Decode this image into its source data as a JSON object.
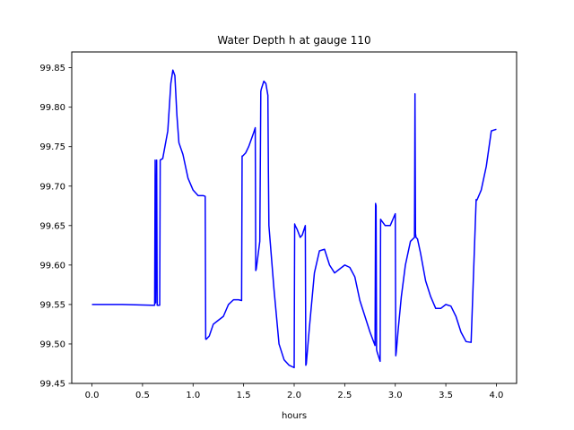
{
  "chart_data": {
    "type": "line",
    "title": "Water Depth h at gauge 110",
    "xlabel": "hours",
    "ylabel": "",
    "xlim": [
      -0.2,
      4.2
    ],
    "ylim": [
      99.45,
      99.87
    ],
    "x_ticks": [
      0.0,
      0.5,
      1.0,
      1.5,
      2.0,
      2.5,
      3.0,
      3.5,
      4.0
    ],
    "x_tick_labels": [
      "0.0",
      "0.5",
      "1.0",
      "1.5",
      "2.0",
      "2.5",
      "3.0",
      "3.5",
      "4.0"
    ],
    "y_ticks": [
      99.45,
      99.5,
      99.55,
      99.6,
      99.65,
      99.7,
      99.75,
      99.8,
      99.85
    ],
    "y_tick_labels": [
      "99.45",
      "99.50",
      "99.55",
      "99.60",
      "99.65",
      "99.70",
      "99.75",
      "99.80",
      "99.85"
    ],
    "grid": false,
    "series": [
      {
        "color": "#0000ff",
        "x": [
          0.0,
          0.3,
          0.6,
          0.62,
          0.625,
          0.63,
          0.64,
          0.645,
          0.66,
          0.67,
          0.675,
          0.7,
          0.75,
          0.78,
          0.8,
          0.82,
          0.84,
          0.86,
          0.9,
          0.95,
          1.0,
          1.05,
          1.1,
          1.12,
          1.125,
          1.13,
          1.16,
          1.2,
          1.25,
          1.3,
          1.35,
          1.4,
          1.45,
          1.48,
          1.485,
          1.49,
          1.52,
          1.55,
          1.6,
          1.615,
          1.62,
          1.625,
          1.66,
          1.67,
          1.675,
          1.7,
          1.72,
          1.74,
          1.745,
          1.75,
          1.8,
          1.85,
          1.9,
          1.95,
          2.0,
          2.005,
          2.01,
          2.03,
          2.06,
          2.08,
          2.11,
          2.115,
          2.12,
          2.15,
          2.2,
          2.25,
          2.3,
          2.35,
          2.4,
          2.45,
          2.5,
          2.55,
          2.6,
          2.65,
          2.7,
          2.75,
          2.8,
          2.805,
          2.81,
          2.815,
          2.82,
          2.85,
          2.855,
          2.86,
          2.9,
          2.95,
          3.0,
          3.005,
          3.01,
          3.03,
          3.06,
          3.1,
          3.15,
          3.19,
          3.195,
          3.2,
          3.205,
          3.22,
          3.25,
          3.3,
          3.35,
          3.4,
          3.45,
          3.5,
          3.55,
          3.6,
          3.65,
          3.7,
          3.75,
          3.8,
          3.805,
          3.81,
          3.85,
          3.9,
          3.95,
          4.0
        ],
        "y": [
          99.55,
          99.55,
          99.549,
          99.549,
          99.733,
          99.552,
          99.733,
          99.549,
          99.549,
          99.549,
          99.733,
          99.735,
          99.77,
          99.83,
          99.847,
          99.84,
          99.79,
          99.755,
          99.74,
          99.71,
          99.695,
          99.688,
          99.688,
          99.687,
          99.506,
          99.506,
          99.51,
          99.525,
          99.53,
          99.535,
          99.55,
          99.556,
          99.556,
          99.555,
          99.738,
          99.738,
          99.742,
          99.75,
          99.768,
          99.774,
          99.593,
          99.595,
          99.63,
          99.82,
          99.823,
          99.833,
          99.83,
          99.815,
          99.72,
          99.65,
          99.57,
          99.5,
          99.48,
          99.473,
          99.47,
          99.652,
          99.65,
          99.645,
          99.635,
          99.638,
          99.65,
          99.473,
          99.475,
          99.52,
          99.59,
          99.618,
          99.62,
          99.6,
          99.59,
          99.595,
          99.6,
          99.597,
          99.585,
          99.555,
          99.535,
          99.515,
          99.498,
          99.678,
          99.675,
          99.493,
          99.49,
          99.478,
          99.658,
          99.657,
          99.65,
          99.65,
          99.665,
          99.485,
          99.49,
          99.52,
          99.56,
          99.6,
          99.63,
          99.635,
          99.817,
          99.64,
          99.635,
          99.633,
          99.615,
          99.58,
          99.56,
          99.545,
          99.545,
          99.55,
          99.548,
          99.535,
          99.515,
          99.503,
          99.502,
          99.683,
          99.682,
          99.683,
          99.695,
          99.725,
          99.77,
          99.772
        ]
      }
    ]
  }
}
